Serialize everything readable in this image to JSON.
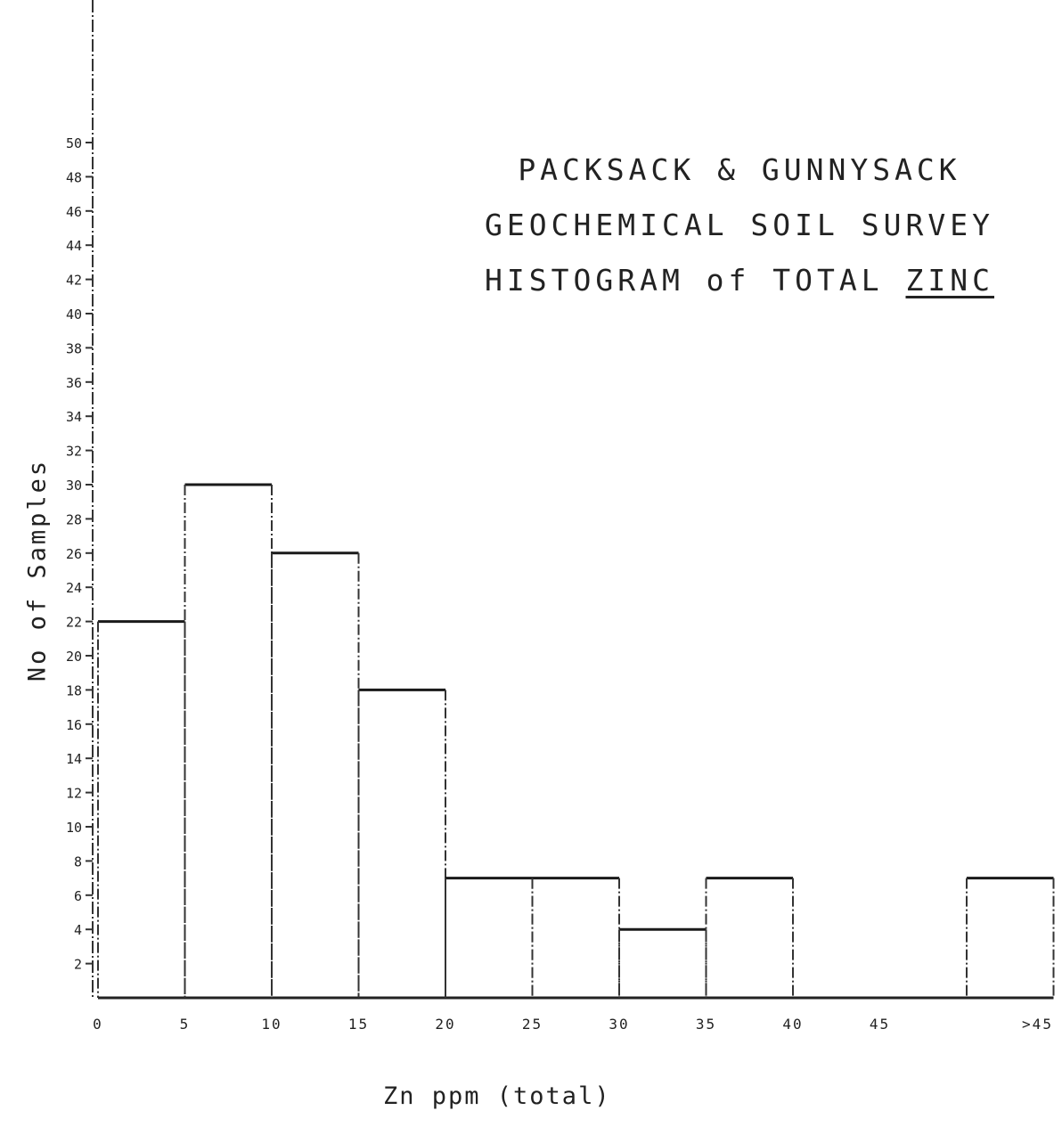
{
  "chart_data": {
    "type": "bar",
    "title_lines": [
      "PACKSACK & GUNNYSACK",
      "GEOCHEMICAL SOIL SURVEY"
    ],
    "title_line3_prefix": "HISTOGRAM of TOTAL",
    "title_line3_emphasis": "ZINC",
    "xlabel": "Zn ppm (total)",
    "ylabel": "No of Samples",
    "x_tick_labels": [
      "0",
      "5",
      "10",
      "15",
      "20",
      "25",
      "30",
      "35",
      "40",
      "45",
      ">45"
    ],
    "y_tick_labels": [
      "2",
      "4",
      "6",
      "8",
      "10",
      "12",
      "14",
      "16",
      "18",
      "20",
      "22",
      "24",
      "26",
      "28",
      "30",
      "32",
      "34",
      "36",
      "38",
      "40",
      "42",
      "44",
      "46",
      "48",
      "50"
    ],
    "ylim": [
      0,
      50
    ],
    "bins": [
      {
        "start": 0,
        "end": 5,
        "value": 22
      },
      {
        "start": 5,
        "end": 10,
        "value": 30
      },
      {
        "start": 10,
        "end": 15,
        "value": 26
      },
      {
        "start": 15,
        "end": 20,
        "value": 18
      },
      {
        "start": 20,
        "end": 25,
        "value": 7
      },
      {
        "start": 25,
        "end": 30,
        "value": 7
      },
      {
        "start": 30,
        "end": 35,
        "value": 4
      },
      {
        "start": 35,
        "end": 40,
        "value": 7
      },
      {
        "start": 40,
        "end": 45,
        "value": 0
      },
      {
        "start": 45,
        "end": 50,
        "value": 0
      },
      {
        "start": 50,
        "end": 55,
        "value": 7
      }
    ]
  }
}
